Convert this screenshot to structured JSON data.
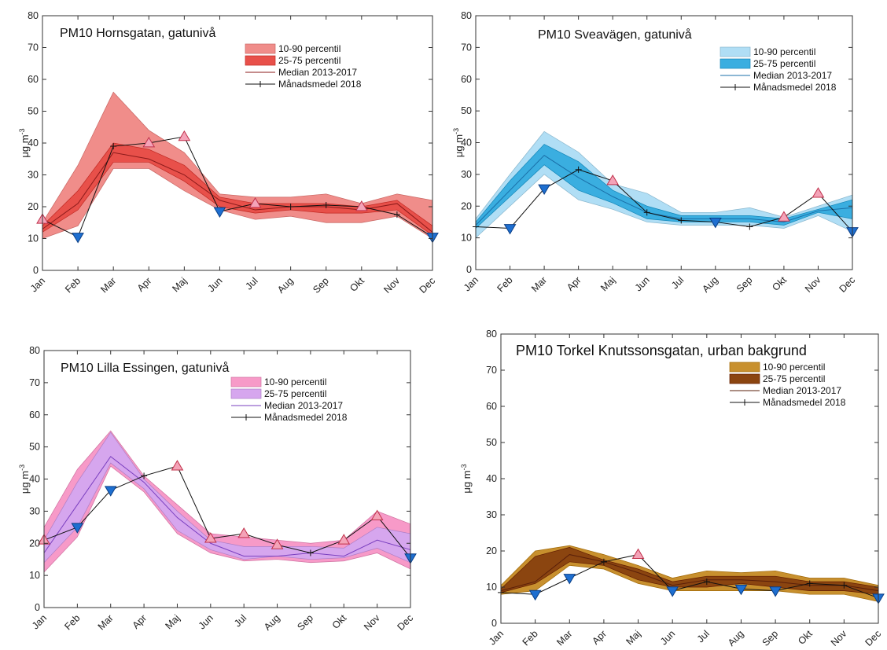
{
  "chart_data": [
    {
      "id": "hornsgatan",
      "type": "area",
      "title": "PM10 Hornsgatan, gatunivå",
      "ylabel_main": "μg m",
      "ylabel_sup": "-3",
      "categories": [
        "Jan",
        "Feb",
        "Mar",
        "Apr",
        "Maj",
        "Jun",
        "Jul",
        "Aug",
        "Sep",
        "Okt",
        "Nov",
        "Dec"
      ],
      "ylim": [
        0,
        80
      ],
      "yticks": [
        0,
        10,
        20,
        30,
        40,
        50,
        60,
        70,
        80
      ],
      "grid": false,
      "legend_position": "top-right",
      "colors": {
        "band90": "#f08d8a",
        "band75": "#e8504a",
        "median": "#8b1a1a",
        "monthly": "#111111",
        "marker_up": "#f4a3b8",
        "marker_down": "#1e6fd0"
      },
      "legend": [
        "10-90 percentil",
        "25-75 percentil",
        "Median 2013-2017",
        "Månadsmedel 2018"
      ],
      "p10": [
        10,
        14,
        32,
        32,
        25,
        19,
        16,
        17,
        15,
        15,
        17,
        10
      ],
      "p90": [
        15,
        33,
        56,
        44,
        37,
        24,
        23,
        23,
        24,
        21,
        24,
        22
      ],
      "p25": [
        12,
        19,
        34,
        34,
        28,
        20,
        18,
        19,
        18,
        18,
        19,
        11
      ],
      "p75": [
        14,
        25,
        40,
        38,
        33,
        23,
        21,
        21,
        21,
        20,
        22,
        14
      ],
      "median": [
        13,
        21,
        37,
        35,
        30,
        22,
        19,
        20,
        20,
        19,
        21,
        12
      ],
      "monthly_2018": [
        16,
        10.5,
        39,
        40,
        42,
        18.5,
        21,
        20,
        20.5,
        20,
        17.5,
        10.5
      ],
      "markers": [
        "up",
        "down",
        "none",
        "up",
        "up",
        "down",
        "up",
        "none",
        "none",
        "up",
        "none",
        "down"
      ]
    },
    {
      "id": "sveavagen",
      "type": "area",
      "title": "PM10 Sveavägen, gatunivå",
      "ylabel_main": "μg m",
      "ylabel_sup": "-3",
      "categories": [
        "Jan",
        "Feb",
        "Mar",
        "Apr",
        "Maj",
        "Jun",
        "Jul",
        "Aug",
        "Sep",
        "Okt",
        "Nov",
        "Dec"
      ],
      "ylim": [
        0,
        80
      ],
      "yticks": [
        0,
        10,
        20,
        30,
        40,
        50,
        60,
        70,
        80
      ],
      "grid": false,
      "legend_position": "top-right",
      "colors": {
        "band90": "#b0def5",
        "band75": "#3aaee0",
        "median": "#1a6fa8",
        "monthly": "#111111",
        "marker_up": "#f4a3b8",
        "marker_down": "#1e6fd0"
      },
      "legend": [
        "10-90 percentil",
        "25-75 percentil",
        "Median 2013-2017",
        "Månadsmedel 2018"
      ],
      "p10": [
        10,
        20,
        30,
        22,
        19,
        15,
        14,
        14,
        14,
        13,
        17,
        12
      ],
      "p90": [
        16,
        30,
        43.5,
        37,
        27,
        24,
        18,
        18,
        19.5,
        16.5,
        20,
        23.5
      ],
      "p25": [
        13,
        23,
        33,
        25,
        21,
        16,
        15,
        15,
        15,
        14,
        18,
        16
      ],
      "p75": [
        15,
        28,
        39.5,
        34,
        25,
        20,
        17,
        17,
        17,
        16,
        19,
        22
      ],
      "median": [
        14,
        25,
        36,
        29,
        23,
        18,
        16,
        16,
        16,
        15,
        18.5,
        19.5
      ],
      "monthly_2018": [
        13.5,
        13,
        25.5,
        31.5,
        28,
        18,
        15.5,
        15,
        13.5,
        16.5,
        24,
        12
      ],
      "markers": [
        "none",
        "down",
        "down",
        "none",
        "up",
        "none",
        "none",
        "down",
        "none",
        "up",
        "up",
        "down"
      ]
    },
    {
      "id": "lilla-essingen",
      "type": "area",
      "title": "PM10 Lilla Essingen, gatunivå",
      "ylabel_main": "μg m",
      "ylabel_sup": "-3",
      "categories": [
        "Jan",
        "Feb",
        "Mar",
        "Apr",
        "Maj",
        "Jun",
        "Jul",
        "Aug",
        "Sep",
        "Okt",
        "Nov",
        "Dec"
      ],
      "ylim": [
        0,
        80
      ],
      "yticks": [
        0,
        10,
        20,
        30,
        40,
        50,
        60,
        70,
        80
      ],
      "grid": false,
      "legend_position": "top-right",
      "colors": {
        "band90": "#f79ac8",
        "band75": "#d6a6ee",
        "median": "#7a3fbf",
        "monthly": "#111111",
        "marker_up": "#f4a3b8",
        "marker_down": "#1e6fd0"
      },
      "legend": [
        "10-90 percentil",
        "25-75 percentil",
        "Median 2013-2017",
        "Månadsmedel 2018"
      ],
      "p10": [
        11,
        22,
        44,
        36,
        23,
        17,
        14.5,
        15,
        14,
        14.5,
        17,
        12
      ],
      "p90": [
        25,
        43,
        55,
        41,
        32,
        23,
        22,
        21,
        20,
        21,
        30,
        26
      ],
      "p25": [
        14,
        25,
        45,
        37,
        24,
        18,
        15,
        16,
        15,
        15.5,
        18.5,
        14
      ],
      "p75": [
        21,
        39,
        54.5,
        40,
        30,
        21,
        19,
        19,
        19,
        18.5,
        25,
        23
      ],
      "median": [
        17,
        32,
        47,
        39,
        28,
        20,
        16,
        16,
        17,
        16,
        21,
        18
      ],
      "monthly_2018": [
        21,
        25,
        36.5,
        41,
        44,
        21.5,
        23,
        19.5,
        17,
        21,
        28.5,
        15.5
      ],
      "markers": [
        "up",
        "down",
        "down",
        "none",
        "up",
        "up",
        "up",
        "up",
        "none",
        "up",
        "up",
        "down"
      ]
    },
    {
      "id": "torkel-knutssonsgatan",
      "type": "area",
      "title": "PM10 Torkel Knutssonsgatan, urban bakgrund",
      "ylabel_main": "μg m",
      "ylabel_sup": "-3",
      "categories": [
        "Jan",
        "Feb",
        "Mar",
        "Apr",
        "Maj",
        "Jun",
        "Jul",
        "Aug",
        "Sep",
        "Okt",
        "Nov",
        "Dec"
      ],
      "ylim": [
        0,
        80
      ],
      "yticks": [
        0,
        10,
        20,
        30,
        40,
        50,
        60,
        70,
        80
      ],
      "grid": false,
      "legend_position": "top-right",
      "colors": {
        "band90": "#c8902e",
        "band75": "#8b4510",
        "median": "#5a1f0a",
        "monthly": "#111111",
        "marker_up": "#f4a3b8",
        "marker_down": "#1e6fd0"
      },
      "legend": [
        "10-90 percentil",
        "25-75 percentil",
        "Median 2013-2017",
        "Månadsmedel 2018"
      ],
      "p10": [
        8,
        9,
        16,
        15,
        11,
        9,
        9,
        9,
        9,
        8,
        8,
        6
      ],
      "p90": [
        10.5,
        20,
        21.5,
        19,
        16,
        12.5,
        14.5,
        14,
        14.5,
        12.5,
        12.5,
        10.5
      ],
      "p25": [
        8.5,
        11,
        17,
        16,
        12,
        10,
        10,
        11,
        10,
        9,
        9,
        8
      ],
      "p75": [
        9.5,
        18.5,
        21,
        17.5,
        15,
        11.5,
        13,
        13,
        13,
        11.5,
        11.5,
        10
      ],
      "median": [
        9,
        11.5,
        19,
        17,
        14,
        10.5,
        12,
        12,
        11.5,
        10.5,
        10.5,
        9
      ],
      "monthly_2018": [
        8.5,
        8,
        12.5,
        17,
        19,
        9,
        11.5,
        9.5,
        9,
        11,
        10.5,
        7
      ],
      "markers": [
        "none",
        "down",
        "down",
        "none",
        "up",
        "down",
        "none",
        "down",
        "down",
        "none",
        "none",
        "down"
      ]
    }
  ]
}
